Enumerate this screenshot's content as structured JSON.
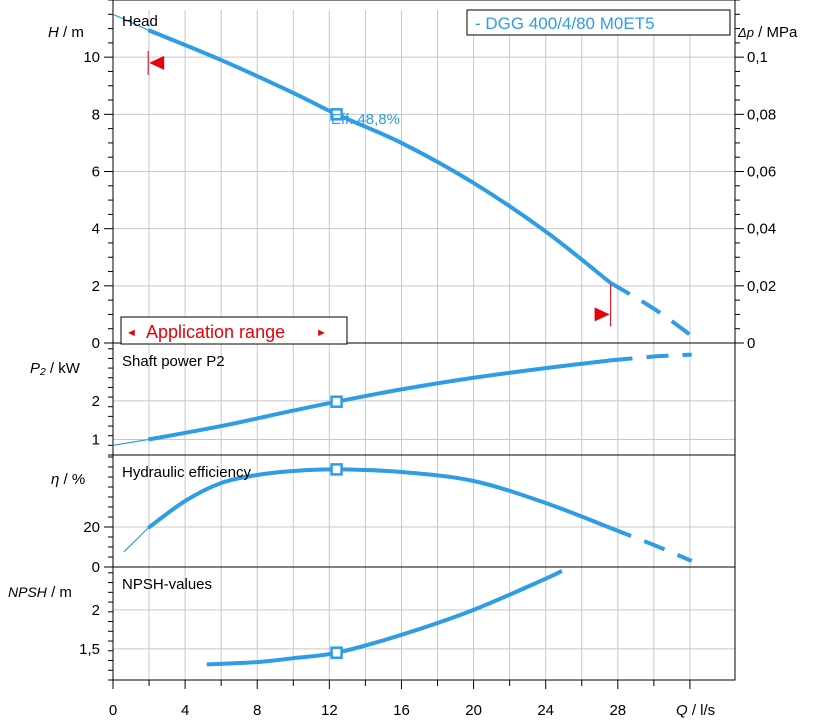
{
  "legend": "- DGG 400/4/80 M0ET5",
  "annotation": "Eff.  48,8%",
  "application_range": "Application range",
  "colors": {
    "curve": "#2f9ce6",
    "marker": "#e8000a",
    "frame": "#000000",
    "grid": "#c8c8c8"
  },
  "chart_data": [
    {
      "type": "line",
      "panel": "head",
      "title": "Head",
      "ylabel_var": "H",
      "ylabel_unit": " / m",
      "ylim": [
        0,
        12
      ],
      "yticks": [
        0,
        2,
        4,
        6,
        8,
        10
      ],
      "ytick_labels": [
        "0",
        "2",
        "4",
        "6",
        "8",
        "10"
      ],
      "ylabel2_var": "Δp",
      "ylabel2_unit": " / MPa",
      "y2lim": [
        0,
        0.12
      ],
      "y2ticks": [
        0,
        0.02,
        0.04,
        0.06,
        0.08,
        0.1
      ],
      "y2tick_labels": [
        "0",
        "0,02",
        "0,04",
        "0,06",
        "0,08",
        "0,1"
      ],
      "series": [
        {
          "style": "thin",
          "x": [
            0,
            1.95
          ],
          "y": [
            11.5,
            10.95
          ]
        },
        {
          "style": "solid",
          "x": [
            1.95,
            6,
            10,
            12.4,
            16,
            20,
            24,
            27.6
          ],
          "y": [
            10.95,
            9.9,
            8.75,
            8.0,
            7.0,
            5.6,
            3.9,
            2.1
          ]
        },
        {
          "style": "dashed",
          "x": [
            27.6,
            30,
            32.1
          ],
          "y": [
            2.1,
            1.2,
            0.25
          ]
        }
      ],
      "operating_point": {
        "x": 12.4,
        "y": 8.0
      },
      "range_markers": [
        {
          "x": 1.95,
          "y": 9.8,
          "dir": "left"
        },
        {
          "x": 27.6,
          "y": 1.0,
          "dir": "right"
        }
      ]
    },
    {
      "type": "line",
      "panel": "power",
      "title": "Shaft power P2",
      "ylabel_var": "P₂",
      "ylabel_unit": " / kW",
      "ylim": [
        0.6,
        3.5
      ],
      "yticks": [
        1,
        2
      ],
      "ytick_labels": [
        "1",
        "2"
      ],
      "series": [
        {
          "style": "thin",
          "x": [
            0,
            1.95
          ],
          "y": [
            0.85,
            1.0
          ]
        },
        {
          "style": "solid",
          "x": [
            1.95,
            6,
            10,
            12.4,
            16,
            20,
            24,
            27.6
          ],
          "y": [
            1.0,
            1.35,
            1.75,
            1.98,
            2.3,
            2.6,
            2.85,
            3.05
          ]
        },
        {
          "style": "dashed",
          "x": [
            27.6,
            30,
            32.1
          ],
          "y": [
            3.05,
            3.15,
            3.2
          ]
        }
      ],
      "operating_point": {
        "x": 12.4,
        "y": 1.98
      }
    },
    {
      "type": "line",
      "panel": "efficiency",
      "title": "Hydraulic efficiency",
      "ylabel_var": "η",
      "ylabel_unit": " / %",
      "ylim": [
        0,
        56
      ],
      "yticks": [
        0,
        20
      ],
      "ytick_labels": [
        "0",
        "20"
      ],
      "series": [
        {
          "style": "thin",
          "x": [
            0.6,
            1.95
          ],
          "y": [
            7.5,
            19.5
          ]
        },
        {
          "style": "solid",
          "x": [
            1.95,
            4,
            6,
            8,
            10,
            12.4,
            16,
            20,
            24,
            27.6
          ],
          "y": [
            19.5,
            33,
            42,
            46,
            48,
            48.8,
            47.5,
            43,
            32,
            19.5
          ]
        },
        {
          "style": "dashed",
          "x": [
            27.6,
            30,
            32.1
          ],
          "y": [
            19.5,
            11,
            3
          ]
        }
      ],
      "operating_point": {
        "x": 12.4,
        "y": 48.8
      }
    },
    {
      "type": "line",
      "panel": "npsh",
      "title": "NPSH-values",
      "ylabel_var": "NPSH",
      "ylabel_unit": "  / m",
      "ylim": [
        1.1,
        2.55
      ],
      "yticks": [
        1.5,
        2
      ],
      "ytick_labels": [
        "1,5",
        "2"
      ],
      "series": [
        {
          "style": "solid",
          "x": [
            5.2,
            8,
            10,
            12.4,
            16,
            20,
            24,
            24.9
          ],
          "y": [
            1.3,
            1.33,
            1.38,
            1.45,
            1.68,
            2.0,
            2.4,
            2.5
          ]
        }
      ],
      "operating_point": {
        "x": 12.4,
        "y": 1.45
      }
    }
  ],
  "x_axis": {
    "xlim": [
      0,
      34.5
    ],
    "xticks": [
      0,
      4,
      8,
      12,
      16,
      20,
      24,
      28
    ],
    "xtick_labels": [
      "0",
      "4",
      "8",
      "12",
      "16",
      "20",
      "24",
      "28"
    ],
    "xlabel_var": "Q",
    "xlabel_unit": " / l/s"
  }
}
